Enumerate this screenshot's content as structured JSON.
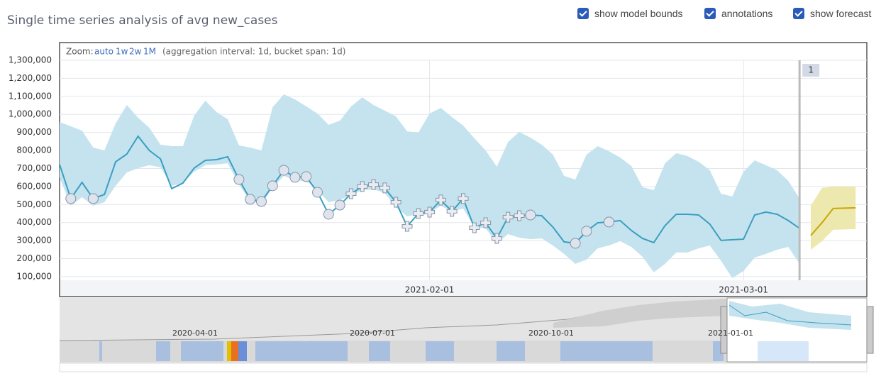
{
  "chart_data": {
    "type": "line",
    "title": "Single time series analysis of avg new_cases",
    "controls": [
      {
        "label": "show model bounds",
        "checked": true
      },
      {
        "label": "annotations",
        "checked": true
      },
      {
        "label": "show forecast",
        "checked": true
      }
    ],
    "zoom": {
      "label": "Zoom:",
      "options": [
        "auto",
        "1w",
        "2w",
        "1M"
      ],
      "info": "(aggregation interval: 1d, bucket span: 1d)"
    },
    "x": [
      "2020-12-30",
      "2020-12-31",
      "2021-01-01",
      "2021-01-02",
      "2021-01-03",
      "2021-01-04",
      "2021-01-05",
      "2021-01-06",
      "2021-01-07",
      "2021-01-08",
      "2021-01-09",
      "2021-01-10",
      "2021-01-11",
      "2021-01-12",
      "2021-01-13",
      "2021-01-14",
      "2021-01-15",
      "2021-01-16",
      "2021-01-17",
      "2021-01-18",
      "2021-01-19",
      "2021-01-20",
      "2021-01-21",
      "2021-01-22",
      "2021-01-23",
      "2021-01-24",
      "2021-01-25",
      "2021-01-26",
      "2021-01-27",
      "2021-01-28",
      "2021-01-29",
      "2021-01-30",
      "2021-01-31",
      "2021-02-01",
      "2021-02-02",
      "2021-02-03",
      "2021-02-04",
      "2021-02-05",
      "2021-02-06",
      "2021-02-07",
      "2021-02-08",
      "2021-02-09",
      "2021-02-10",
      "2021-02-11",
      "2021-02-12",
      "2021-02-13",
      "2021-02-14",
      "2021-02-15",
      "2021-02-16",
      "2021-02-17",
      "2021-02-18",
      "2021-02-19",
      "2021-02-20",
      "2021-02-21",
      "2021-02-22",
      "2021-02-23",
      "2021-02-24",
      "2021-02-25",
      "2021-02-26",
      "2021-02-27",
      "2021-02-28",
      "2021-03-01",
      "2021-03-02",
      "2021-03-03",
      "2021-03-04",
      "2021-03-05",
      "2021-03-06"
    ],
    "values": [
      722000,
      533000,
      623000,
      533000,
      556000,
      737000,
      780000,
      879000,
      800000,
      753000,
      588000,
      619000,
      702000,
      745000,
      749000,
      765000,
      639000,
      529000,
      517000,
      604000,
      690000,
      651000,
      655000,
      568000,
      446000,
      497000,
      560000,
      600000,
      611000,
      592000,
      513000,
      379000,
      450000,
      458000,
      525000,
      462000,
      533000,
      371000,
      399000,
      312000,
      430000,
      438000,
      442000,
      438000,
      375000,
      293000,
      285000,
      352000,
      399000,
      403000,
      411000,
      356000,
      312000,
      289000,
      383000,
      446000,
      446000,
      442000,
      391000,
      301000,
      305000,
      308000,
      442000,
      458000,
      446000,
      411000,
      368000
    ],
    "upper": [
      958000,
      934000,
      910000,
      816000,
      800000,
      950000,
      1052000,
      981000,
      926000,
      832000,
      824000,
      824000,
      993000,
      1076000,
      1013000,
      973000,
      828000,
      816000,
      800000,
      1040000,
      1111000,
      1083000,
      1044000,
      1005000,
      942000,
      965000,
      1044000,
      1095000,
      1052000,
      1021000,
      989000,
      906000,
      899000,
      1005000,
      1036000,
      985000,
      938000,
      867000,
      800000,
      710000,
      847000,
      903000,
      871000,
      832000,
      777000,
      659000,
      639000,
      777000,
      824000,
      796000,
      761000,
      714000,
      596000,
      580000,
      729000,
      785000,
      769000,
      737000,
      690000,
      560000,
      545000,
      682000,
      745000,
      718000,
      690000,
      631000,
      533000
    ],
    "lower": [
      651000,
      493000,
      541000,
      493000,
      513000,
      604000,
      678000,
      702000,
      718000,
      706000,
      604000,
      619000,
      682000,
      718000,
      722000,
      729000,
      611000,
      521000,
      501000,
      592000,
      659000,
      635000,
      631000,
      580000,
      513000,
      525000,
      552000,
      580000,
      584000,
      564000,
      486000,
      434000,
      446000,
      454000,
      493000,
      462000,
      478000,
      375000,
      368000,
      285000,
      336000,
      316000,
      308000,
      312000,
      273000,
      226000,
      171000,
      194000,
      257000,
      273000,
      297000,
      265000,
      210000,
      124000,
      171000,
      234000,
      234000,
      257000,
      273000,
      187000,
      92000,
      131000,
      206000,
      226000,
      249000,
      265000,
      171000
    ],
    "markers": [
      null,
      "circle",
      null,
      "circle",
      null,
      null,
      null,
      null,
      null,
      null,
      null,
      null,
      null,
      null,
      null,
      null,
      "circle",
      "circle",
      "circle",
      "circle",
      "circle",
      "circle",
      "circle",
      "circle",
      "circle",
      "circle",
      "cross",
      "cross",
      "cross",
      "cross",
      "cross",
      "cross",
      "cross",
      "cross",
      "cross",
      "cross",
      "cross",
      "cross",
      "cross",
      "cross",
      "cross",
      "cross",
      "circle",
      null,
      null,
      null,
      "circle",
      "circle",
      null,
      "circle",
      null,
      null,
      null,
      null,
      null,
      null,
      null,
      null,
      null,
      null,
      null,
      null,
      null,
      null,
      null,
      null,
      null
    ],
    "color": "#3a9fc0",
    "band_color": "#c5e3ee",
    "forecast": {
      "x": [
        "2021-03-07",
        "2021-03-08",
        "2021-03-09",
        "2021-03-10",
        "2021-03-11"
      ],
      "values": [
        328000,
        399000,
        478000,
        480000,
        482000
      ],
      "upper": [
        493000,
        592000,
        600000,
        600000,
        600000
      ],
      "lower": [
        249000,
        297000,
        360000,
        362000,
        364000
      ],
      "color": "#c8a80a",
      "band_color": "#ece8ae"
    },
    "annotations": [
      {
        "x": "2021-03-06",
        "label": "1"
      }
    ],
    "xlim": [
      "2020-12-30",
      "2021-03-12"
    ],
    "xticks": [
      "2021-02-01",
      "2021-03-01"
    ],
    "ylim": [
      80000,
      1300000
    ],
    "yticks": [
      {
        "value": 100000,
        "label": "100,000"
      },
      {
        "value": 200000,
        "label": "200,000"
      },
      {
        "value": 300000,
        "label": "300,000"
      },
      {
        "value": 400000,
        "label": "400,000"
      },
      {
        "value": 500000,
        "label": "500,000"
      },
      {
        "value": 600000,
        "label": "600,000"
      },
      {
        "value": 700000,
        "label": "700,000"
      },
      {
        "value": 800000,
        "label": "800,000"
      },
      {
        "value": 900000,
        "label": "900,000"
      },
      {
        "value": 1000000,
        "label": "1,000,000"
      },
      {
        "value": 1100000,
        "label": "1,100,000"
      },
      {
        "value": 1200000,
        "label": "1,200,000"
      },
      {
        "value": 1300000,
        "label": "1,300,000"
      }
    ],
    "grid": true,
    "context_xticks": [
      "2020-04-01",
      "2020-07-01",
      "2020-10-01",
      "2021-01-01"
    ]
  }
}
